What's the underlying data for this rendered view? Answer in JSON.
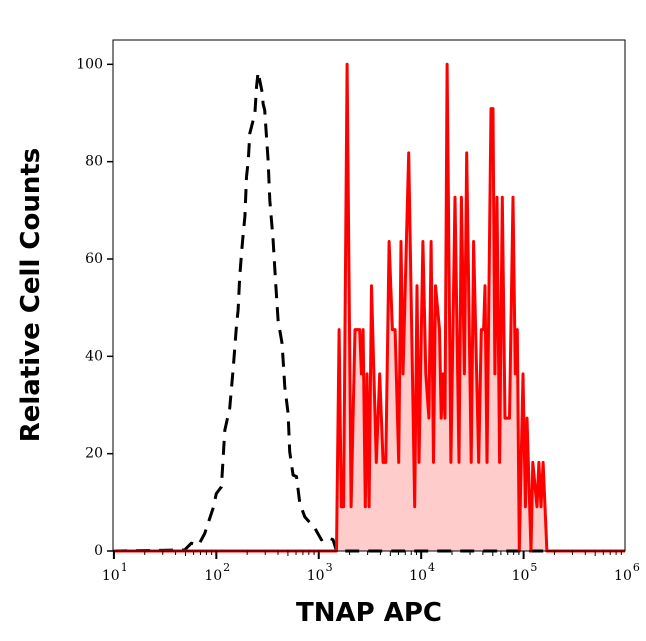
{
  "chart_data": {
    "type": "area",
    "title": "",
    "xlabel": "TNAP APC",
    "ylabel": "Relative Cell Counts",
    "xscale": "log",
    "xlim": [
      9.8,
      977000
    ],
    "ylim": [
      0,
      105
    ],
    "x_ticks": [
      10,
      100,
      1000,
      10000,
      100000,
      1000000
    ],
    "x_tick_labels": [
      {
        "base": "10",
        "exp": "1"
      },
      {
        "base": "10",
        "exp": "2"
      },
      {
        "base": "10",
        "exp": "3"
      },
      {
        "base": "10",
        "exp": "4"
      },
      {
        "base": "10",
        "exp": "5"
      },
      {
        "base": "10",
        "exp": "6"
      }
    ],
    "y_ticks": [
      0,
      20,
      40,
      60,
      80,
      100
    ],
    "y_tick_labels": [
      "0",
      "20",
      "40",
      "60",
      "80",
      "100"
    ],
    "grid": false,
    "series": [
      {
        "style": "dashed line",
        "color": "#000000",
        "x": [
          9.8,
          49,
          57,
          67,
          77,
          93,
          100,
          112,
          121,
          135,
          146,
          157,
          163,
          169,
          176,
          183,
          190,
          197,
          205,
          212,
          238,
          247,
          256,
          280,
          286,
          297,
          309,
          320,
          333,
          358,
          378,
          401,
          439,
          466,
          502,
          521,
          562,
          606,
          653,
          730,
          914,
          1062,
          1189,
          1380,
          1490,
          977000
        ],
        "y": [
          0,
          0.2,
          1.6,
          1.2,
          3.6,
          8.8,
          11.8,
          13.2,
          24.8,
          29.3,
          37.5,
          46.1,
          49.5,
          56.3,
          61.1,
          65.2,
          68.7,
          76.9,
          80.3,
          85.8,
          89.9,
          95.3,
          98.4,
          94.3,
          91.9,
          90.6,
          85.1,
          80.3,
          72.1,
          63.9,
          55.6,
          47.4,
          42.6,
          33.7,
          28.3,
          20.4,
          15.6,
          15.3,
          9.8,
          7.0,
          4.7,
          2.3,
          2.9,
          2.3,
          0,
          0
        ]
      },
      {
        "style": "filled line",
        "color": "#ff0000",
        "fill": "#ffcccc",
        "x": [
          9.8,
          1490,
          1580,
          1660,
          1750,
          1890,
          2070,
          2260,
          2510,
          2610,
          2710,
          2850,
          2960,
          3100,
          3270,
          3650,
          3940,
          4250,
          4510,
          4860,
          5240,
          5560,
          6030,
          6360,
          6650,
          7550,
          8650,
          9100,
          9530,
          10400,
          11100,
          11900,
          12500,
          13200,
          13800,
          15100,
          15700,
          16300,
          17100,
          17900,
          19500,
          21400,
          23400,
          24700,
          26400,
          27800,
          30800,
          32500,
          36400,
          38600,
          40700,
          42000,
          43900,
          48000,
          50200,
          52500,
          55000,
          58300,
          61900,
          65800,
          72900,
          78700,
          83000,
          86700,
          90800,
          98600,
          104000,
          108000,
          118000,
          123000,
          135000,
          141000,
          148000,
          155000,
          169000,
          977000
        ],
        "y": [
          0,
          0,
          45.5,
          9.1,
          9.1,
          100,
          9.1,
          45.5,
          45.5,
          36.4,
          45.5,
          9.1,
          36.4,
          9.1,
          54.5,
          18.2,
          36.4,
          18.2,
          18.2,
          63.6,
          45.5,
          45.5,
          18.2,
          63.6,
          36.4,
          81.8,
          9.1,
          54.5,
          18.2,
          63.6,
          36.4,
          27.3,
          63.6,
          18.2,
          54.5,
          45.5,
          27.3,
          36.4,
          27.3,
          100,
          18.2,
          72.7,
          18.2,
          72.7,
          36.4,
          81.8,
          18.2,
          63.6,
          18.2,
          45.5,
          45.5,
          54.5,
          18.2,
          90.9,
          90.9,
          36.4,
          72.7,
          18.2,
          72.7,
          27.3,
          27.3,
          72.7,
          36.4,
          45.5,
          0,
          36.4,
          9.1,
          27.3,
          0,
          18.2,
          9.1,
          18.2,
          9.1,
          18.2,
          0,
          0
        ]
      }
    ]
  }
}
